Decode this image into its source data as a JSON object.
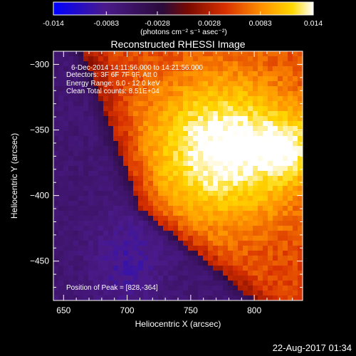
{
  "chart_data": {
    "type": "heatmap",
    "title": "Reconstructed RHESSI Image",
    "colorbar": {
      "range": [
        -0.014,
        0.014
      ],
      "ticks": [
        "-0.014",
        "-0.0083",
        "-0.0028",
        "0.0028",
        "0.0083",
        "0.014"
      ],
      "units": "(photons cm⁻² s⁻¹ asec⁻²)",
      "colormap": "blue-purple-red-orange-yellow-white",
      "colors": [
        "#0000ff",
        "#4b1a8a",
        "#2a0b3a",
        "#7a0a00",
        "#d83000",
        "#ff9000",
        "#ffd800",
        "#ffffff"
      ]
    },
    "xlabel": "Heliocentric X (arcsec)",
    "ylabel": "Heliocentric Y (arcsec)",
    "xlim": [
      642,
      838
    ],
    "ylim": [
      -480,
      -290
    ],
    "xticks": [
      650,
      700,
      750,
      800
    ],
    "yticks": [
      -300,
      -350,
      -400,
      -450
    ],
    "annotations": [
      "6-Dec-2014 14:11:56.000 to 14:21:56.000",
      "Detectors: 3F 6F 7F 9F, Att 0",
      "Energy Range: 6.0 - 12.0 keV",
      "Clean     Total counts: 8.51E+04",
      "Position of Peak = [828,-364]"
    ],
    "peak": [
      828,
      -364
    ],
    "grid": false
  },
  "footer": {
    "timestamp": "22-Aug-2017 01:34"
  }
}
